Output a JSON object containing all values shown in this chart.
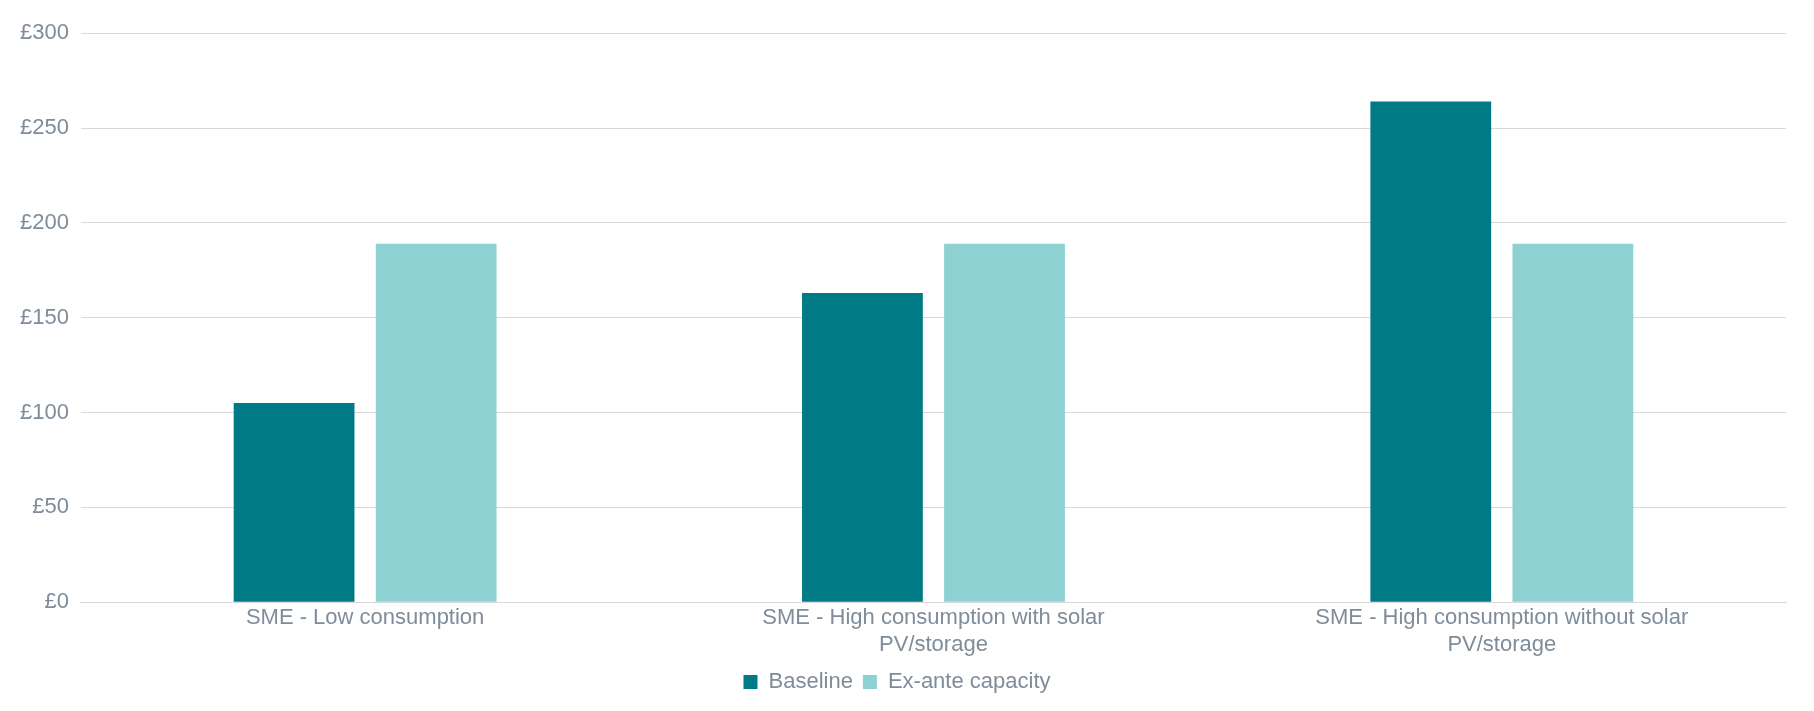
{
  "chart_data": {
    "type": "bar",
    "categories": [
      "SME - Low consumption",
      "SME - High consumption with solar PV/storage",
      "SME - High consumption without solar PV/storage"
    ],
    "series": [
      {
        "name": "Baseline",
        "color": "#007a85",
        "values": [
          105,
          163,
          264
        ]
      },
      {
        "name": "Ex-ante capacity",
        "color": "#8dd1d2",
        "values": [
          189,
          189,
          189
        ]
      }
    ],
    "ylim": [
      0,
      300
    ],
    "yticks": [
      {
        "value": 0,
        "label": "£0"
      },
      {
        "value": 50,
        "label": "£50"
      },
      {
        "value": 100,
        "label": "£100"
      },
      {
        "value": 150,
        "label": "£150"
      },
      {
        "value": 200,
        "label": "£200"
      },
      {
        "value": 250,
        "label": "£250"
      },
      {
        "value": 300,
        "label": "£300"
      }
    ],
    "grid": "y",
    "legend": "bottom"
  }
}
